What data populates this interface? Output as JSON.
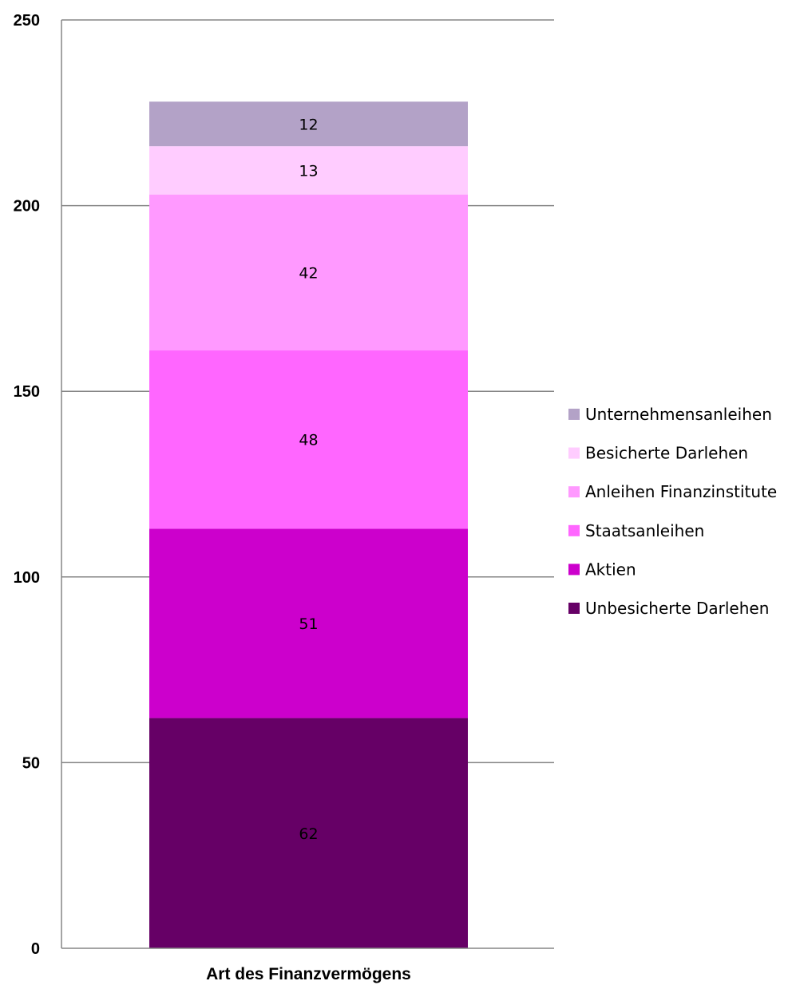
{
  "chart_data": {
    "type": "bar",
    "stacked": true,
    "categories": [
      "Art des Finanzvermögens"
    ],
    "series": [
      {
        "name": "Unbesicherte Darlehen",
        "values": [
          62
        ],
        "color": "#660066"
      },
      {
        "name": "Aktien",
        "values": [
          51
        ],
        "color": "#cc00cc"
      },
      {
        "name": "Staatsanleihen",
        "values": [
          48
        ],
        "color": "#ff66ff"
      },
      {
        "name": "Anleihen Finanzinstitute",
        "values": [
          42
        ],
        "color": "#ff99ff"
      },
      {
        "name": "Besicherte Darlehen",
        "values": [
          13
        ],
        "color": "#ffccff"
      },
      {
        "name": "Unternehmensanleihen",
        "values": [
          12
        ],
        "color": "#b3a2c7"
      }
    ],
    "legend_order": [
      "Unternehmensanleihen",
      "Besicherte Darlehen",
      "Anleihen Finanzinstitute",
      "Staatsanleihen",
      "Aktien",
      "Unbesicherte Darlehen"
    ],
    "yticks": [
      "0",
      "50",
      "100",
      "150",
      "200",
      "250"
    ],
    "ylim": [
      0,
      250
    ],
    "grid": true,
    "legend_position": "right",
    "title": "",
    "xlabel": "",
    "ylabel": ""
  }
}
